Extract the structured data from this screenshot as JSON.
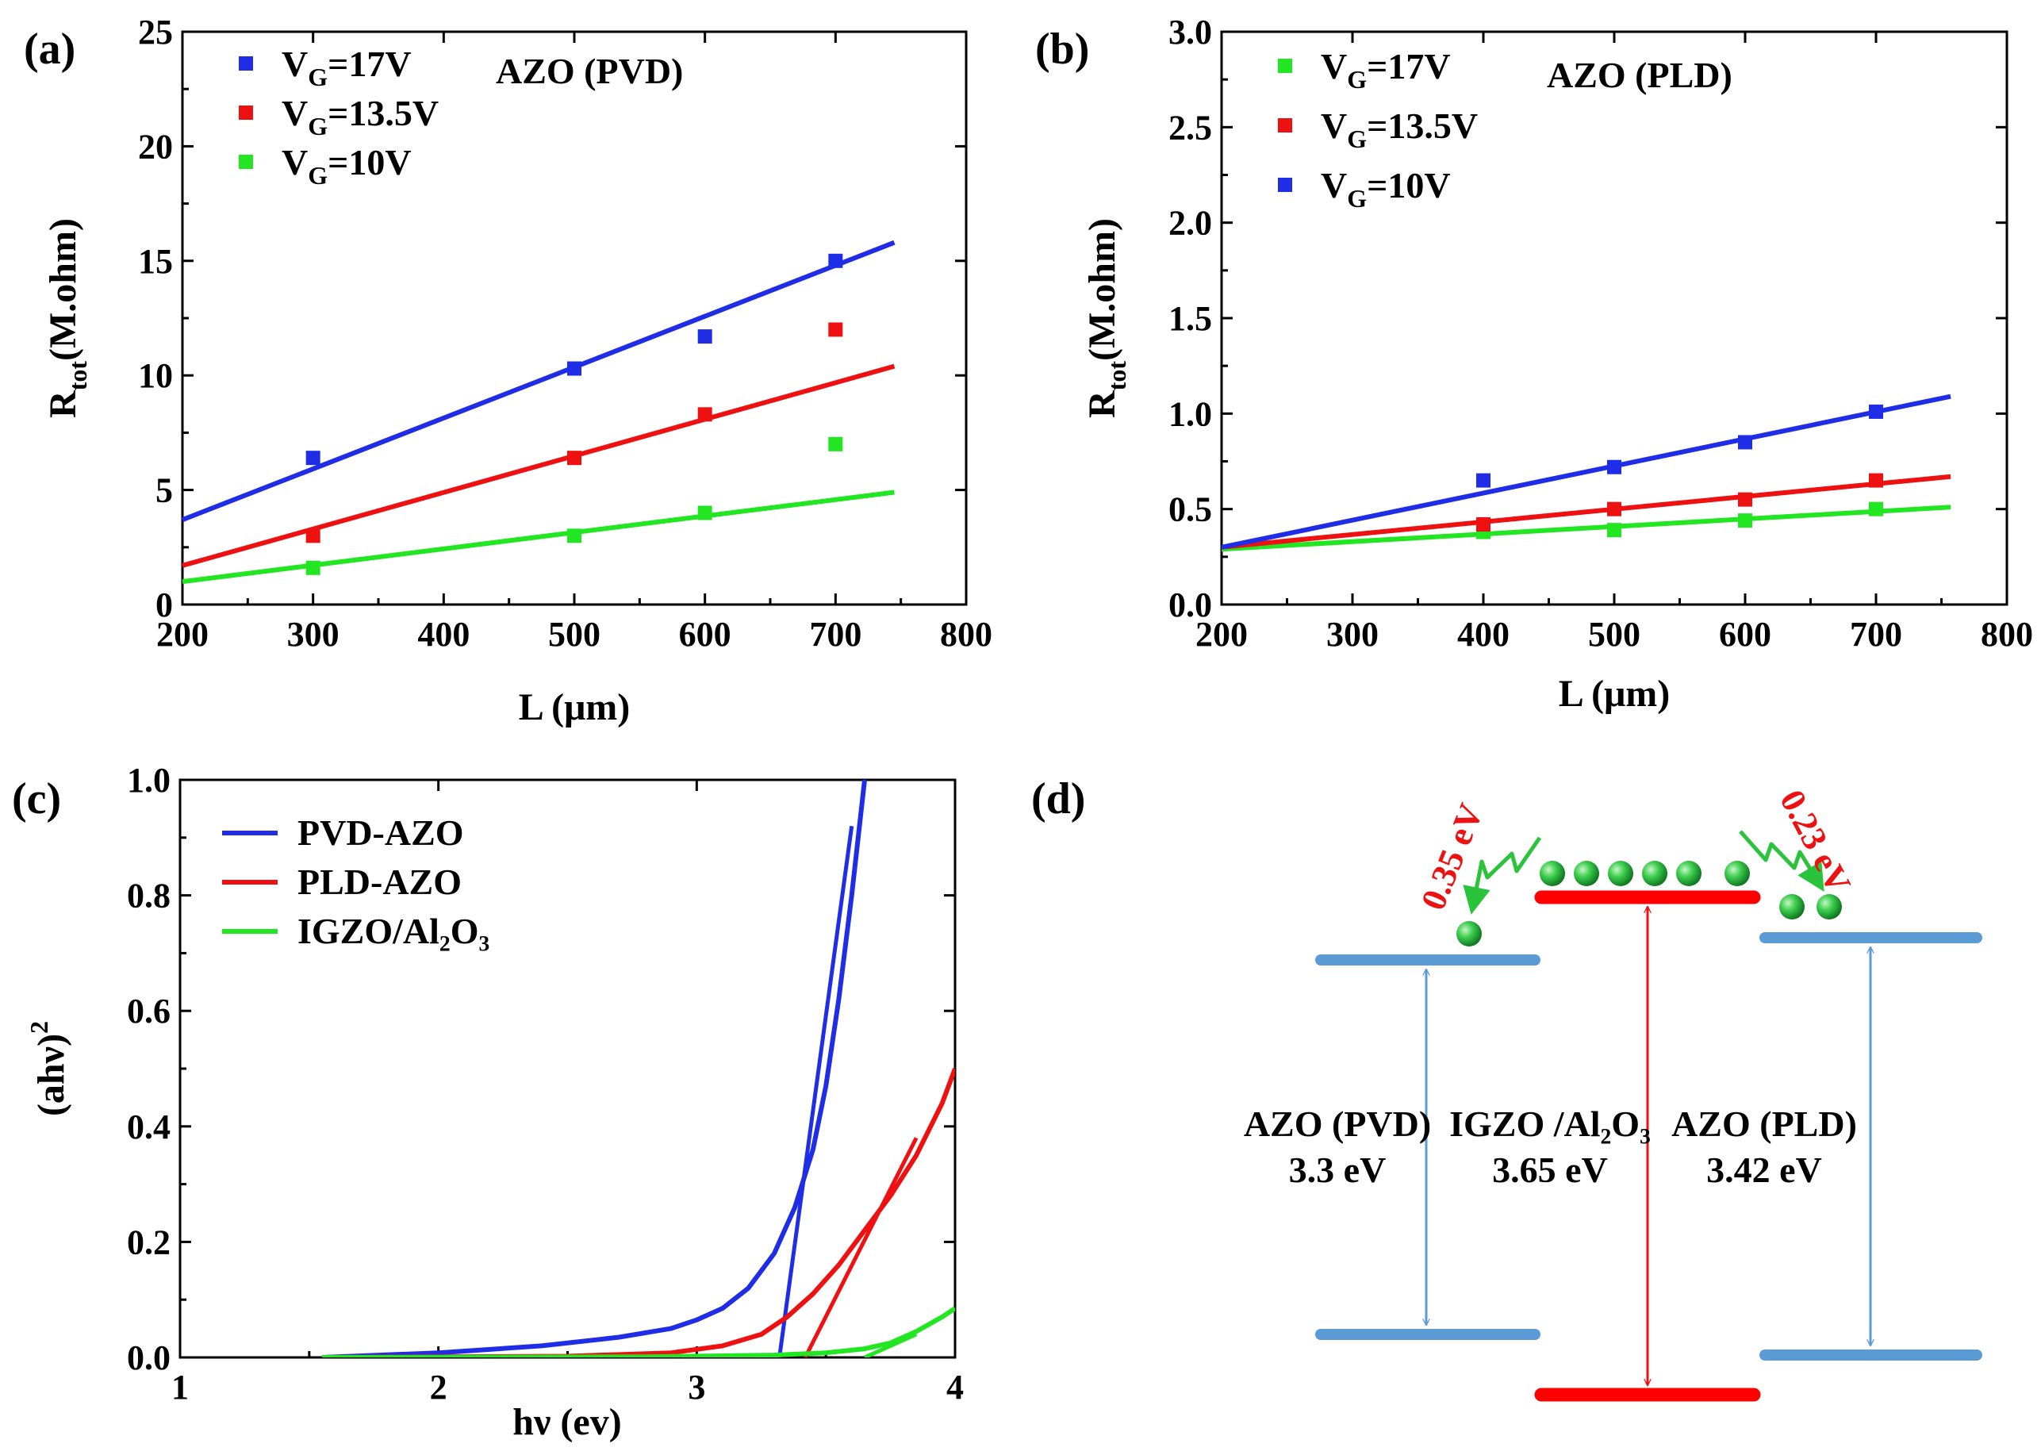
{
  "colors": {
    "blue": "#1f2ee6",
    "red": "#ee1111",
    "green": "#22e622",
    "level_blue": "#5b9bd5",
    "level_red": "#ff0000",
    "hop_green": "#2bc23c",
    "ev_label": "#ee1111"
  },
  "panels": {
    "a": {
      "label": "(a)"
    },
    "b": {
      "label": "(b)"
    },
    "c": {
      "label": "(c)"
    },
    "d": {
      "label": "(d)"
    }
  },
  "chart_data": [
    {
      "id": "a",
      "type": "scatter",
      "annotation": "AZO (PVD)",
      "xlabel": "L (μm)",
      "ylabel": {
        "main": "R",
        "sub": "tot",
        "rest": "(M.ohm)"
      },
      "xlim": [
        200,
        800
      ],
      "ylim": [
        0,
        25
      ],
      "xticks": [
        200,
        300,
        400,
        500,
        600,
        700,
        800
      ],
      "yticks": [
        0,
        5,
        10,
        15,
        20,
        25
      ],
      "legend_position": "top-left",
      "series": [
        {
          "label": {
            "main": "V",
            "sub": "G",
            "rest": "=17V"
          },
          "color": "blue",
          "x": [
            300,
            500,
            600,
            700
          ],
          "y": [
            6.4,
            10.3,
            11.7,
            15.0
          ],
          "fit": {
            "x": [
              200,
              745
            ],
            "y": [
              3.7,
              15.8
            ]
          }
        },
        {
          "label": {
            "main": "V",
            "sub": "G",
            "rest": "=13.5V"
          },
          "color": "red",
          "x": [
            300,
            500,
            600,
            700
          ],
          "y": [
            3.0,
            6.4,
            8.3,
            12.0
          ],
          "fit": {
            "x": [
              200,
              745
            ],
            "y": [
              1.7,
              10.4
            ]
          }
        },
        {
          "label": {
            "main": "V",
            "sub": "G",
            "rest": "=10V"
          },
          "color": "green",
          "x": [
            300,
            500,
            600,
            700
          ],
          "y": [
            1.6,
            3.0,
            4.0,
            7.0
          ],
          "fit": {
            "x": [
              200,
              745
            ],
            "y": [
              1.0,
              4.9
            ]
          }
        }
      ]
    },
    {
      "id": "b",
      "type": "scatter",
      "annotation": "AZO (PLD)",
      "xlabel": "L (μm)",
      "ylabel": {
        "main": "R",
        "sub": "tot",
        "rest": "(M.ohm)"
      },
      "xlim": [
        200,
        800
      ],
      "ylim": [
        0,
        3.0
      ],
      "xticks": [
        200,
        300,
        400,
        500,
        600,
        700,
        800
      ],
      "yticks": [
        "0.0",
        "0.5",
        "1.0",
        "1.5",
        "2.0",
        "2.5",
        "3.0"
      ],
      "legend_position": "top-left",
      "series": [
        {
          "label": {
            "main": "V",
            "sub": "G",
            "rest": "=17V"
          },
          "color": "green",
          "x": [
            400,
            500,
            600,
            700
          ],
          "y": [
            0.38,
            0.39,
            0.44,
            0.5
          ],
          "fit": {
            "x": [
              200,
              757
            ],
            "y": [
              0.29,
              0.51
            ]
          }
        },
        {
          "label": {
            "main": "V",
            "sub": "G",
            "rest": "=13.5V"
          },
          "color": "red",
          "x": [
            400,
            500,
            600,
            700
          ],
          "y": [
            0.42,
            0.5,
            0.55,
            0.65
          ],
          "fit": {
            "x": [
              200,
              757
            ],
            "y": [
              0.3,
              0.67
            ]
          }
        },
        {
          "label": {
            "main": "V",
            "sub": "G",
            "rest": "=10V"
          },
          "color": "blue",
          "x": [
            400,
            500,
            600,
            700
          ],
          "y": [
            0.65,
            0.72,
            0.85,
            1.01
          ],
          "fit": {
            "x": [
              200,
              757
            ],
            "y": [
              0.3,
              1.09
            ]
          }
        }
      ]
    },
    {
      "id": "c",
      "type": "line",
      "xlabel": "hν (ev)",
      "ylabel": {
        "main": "(ahν)",
        "sup": "2"
      },
      "xlim": [
        1,
        4
      ],
      "ylim": [
        0,
        1.0
      ],
      "xticks": [
        "1",
        "2",
        "3",
        "4"
      ],
      "yticks": [
        "0.0",
        "0.2",
        "0.4",
        "0.6",
        "0.8",
        "1.0"
      ],
      "legend_position": "top-left",
      "series": [
        {
          "name": "PVD-AZO",
          "color": "blue",
          "x": [
            1.55,
            2.0,
            2.4,
            2.7,
            2.9,
            3.0,
            3.1,
            3.2,
            3.3,
            3.38,
            3.45,
            3.5,
            3.55,
            3.6,
            3.65
          ],
          "y": [
            0.0,
            0.008,
            0.02,
            0.035,
            0.05,
            0.065,
            0.085,
            0.12,
            0.18,
            0.26,
            0.36,
            0.47,
            0.62,
            0.8,
            1.0
          ],
          "tangent": {
            "x": [
              3.32,
              3.6
            ],
            "y": [
              0.0,
              0.92
            ]
          }
        },
        {
          "name": "PLD-AZO",
          "color": "red",
          "x": [
            1.55,
            2.5,
            2.9,
            3.1,
            3.25,
            3.35,
            3.45,
            3.55,
            3.65,
            3.75,
            3.85,
            3.95,
            4.0
          ],
          "y": [
            0.0,
            0.002,
            0.008,
            0.02,
            0.04,
            0.07,
            0.11,
            0.16,
            0.22,
            0.28,
            0.35,
            0.44,
            0.5
          ],
          "tangent": {
            "x": [
              3.42,
              3.85
            ],
            "y": [
              0.0,
              0.38
            ]
          }
        },
        {
          "name": "IGZO/Al₂O₃",
          "color": "green",
          "x": [
            1.55,
            2.8,
            3.3,
            3.5,
            3.65,
            3.75,
            3.85,
            3.95,
            4.0
          ],
          "y": [
            0.0,
            0.001,
            0.004,
            0.008,
            0.015,
            0.025,
            0.045,
            0.07,
            0.085
          ],
          "tangent": {
            "x": [
              3.65,
              3.85
            ],
            "y": [
              0.0,
              0.04
            ]
          }
        }
      ]
    }
  ],
  "diagram_d": {
    "bandgaps": [
      {
        "name": "AZO (PVD)",
        "energy": "3.3 eV"
      },
      {
        "name": "IGZO /Al₂O₃",
        "energy": "3.65 eV"
      },
      {
        "name": "AZO (PLD)",
        "energy": "3.42 eV"
      }
    ],
    "offsets": [
      {
        "value": "0.35 eV"
      },
      {
        "value": "0.23 eV"
      }
    ]
  }
}
